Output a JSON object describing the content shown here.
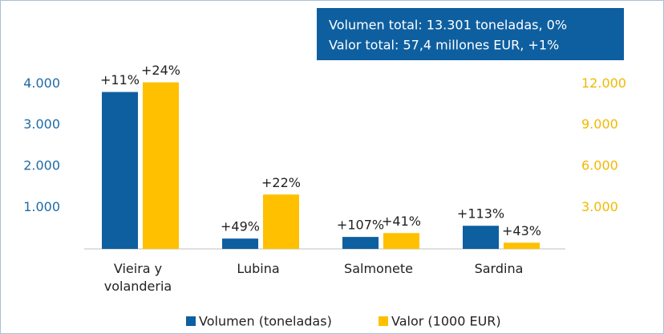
{
  "chart_data": {
    "type": "bar",
    "annotations": [
      "Volumen total: 13.301 toneladas, 0%",
      "Valor total: 57,4 millones EUR,  +1%"
    ],
    "categories": [
      "Vieira y volanderia",
      "Lubina",
      "Salmonete",
      "Sardina"
    ],
    "series": [
      {
        "name": "Volumen (toneladas)",
        "color": "#0e5fa0",
        "values": [
          3800,
          250,
          290,
          560
        ],
        "change_labels": [
          "+11%",
          "+49%",
          "+107%",
          "+113%"
        ]
      },
      {
        "name": "Valor (1000 EUR)",
        "color": "#ffc000",
        "axis": "y2",
        "values": [
          12100,
          3950,
          1150,
          450
        ],
        "change_labels": [
          "+24%",
          "+22%",
          "+41%",
          "+43%"
        ]
      }
    ],
    "ylim": [
      0,
      4200
    ],
    "yticks": [
      {
        "value": 1000,
        "label": "1.000"
      },
      {
        "value": 2000,
        "label": "2.000"
      },
      {
        "value": 3000,
        "label": "3.000"
      },
      {
        "value": 4000,
        "label": "4.000"
      }
    ],
    "y2lim": [
      0,
      12600
    ],
    "y2ticks": [
      {
        "value": 3000,
        "label": "3.000"
      },
      {
        "value": 6000,
        "label": "6.000"
      },
      {
        "value": 9000,
        "label": "9.000"
      },
      {
        "value": 12000,
        "label": "12.000"
      }
    ],
    "legend": "bottom"
  }
}
